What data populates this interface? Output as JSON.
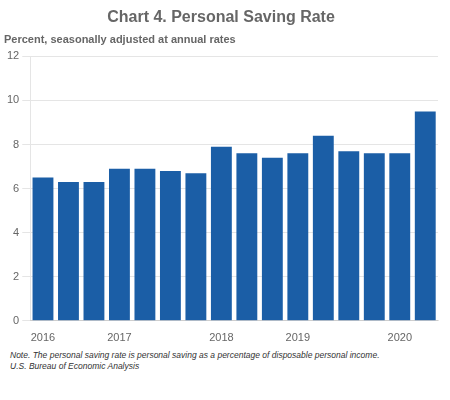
{
  "chart_data": {
    "type": "bar",
    "title": "Chart 4. Personal Saving Rate",
    "subtitle": "Percent, seasonally adjusted at annual rates",
    "notes": [
      "Note. The personal saving rate is personal saving as a percentage of disposable personal income.",
      "U.S. Bureau of Economic Analysis"
    ],
    "categories": [
      "2016",
      null,
      null,
      "2017",
      null,
      null,
      null,
      "2018",
      null,
      null,
      "2019",
      null,
      null,
      null,
      "2020",
      null
    ],
    "values": [
      6.5,
      6.3,
      6.3,
      6.9,
      6.9,
      6.8,
      6.7,
      7.9,
      7.6,
      7.4,
      7.6,
      8.4,
      7.7,
      7.6,
      7.6,
      9.5
    ],
    "color": "#1b5ea6",
    "ylim": [
      0,
      12
    ],
    "yticks": [
      0,
      2,
      4,
      6,
      8,
      10,
      12
    ],
    "grid": true
  }
}
